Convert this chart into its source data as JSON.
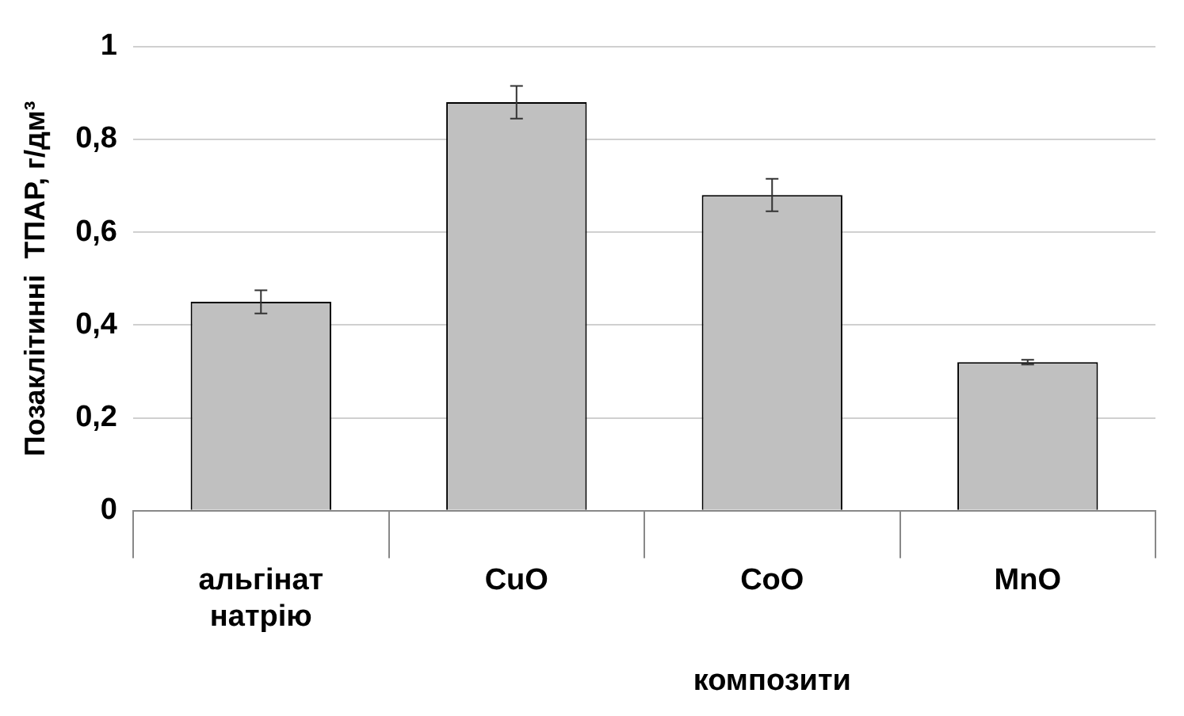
{
  "chart_data": {
    "type": "bar",
    "ylabel": "Позаклітинні  ТПАР, г/дм³",
    "categories": [
      "альгінат натрію",
      "CuO",
      "CoO",
      "MnO"
    ],
    "values": [
      0.45,
      0.88,
      0.68,
      0.32
    ],
    "errors": [
      0.025,
      0.035,
      0.035,
      0.005
    ],
    "color": "#c0c0c0",
    "ylim": [
      0,
      1
    ],
    "yticks": [
      {
        "value": 0,
        "label": "0"
      },
      {
        "value": 0.2,
        "label": "0,2"
      },
      {
        "value": 0.4,
        "label": "0,4"
      },
      {
        "value": 0.6,
        "label": "0,6"
      },
      {
        "value": 0.8,
        "label": "0,8"
      },
      {
        "value": 1,
        "label": "1"
      }
    ],
    "grid": "y",
    "legend": false,
    "annotations": [
      "композити"
    ]
  }
}
